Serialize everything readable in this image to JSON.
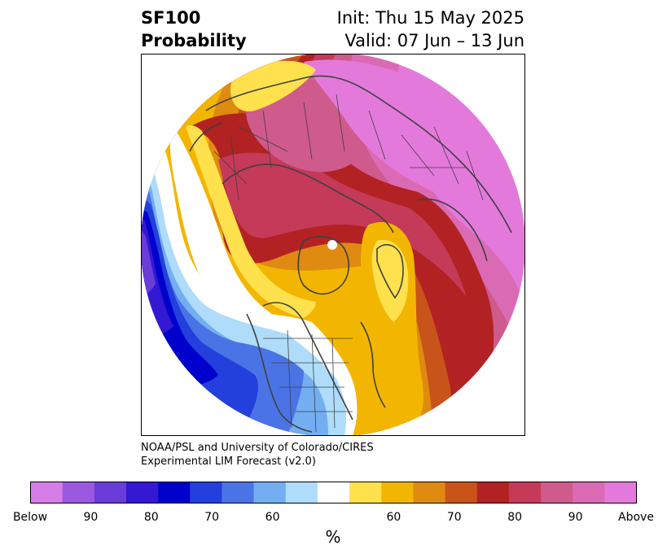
{
  "title": {
    "left_line1": "SF100",
    "left_line2": "Probability",
    "right_line1": "Init: Thu 15 May 2025",
    "right_line2": "Valid: 07 Jun – 13 Jun"
  },
  "credit": {
    "line1": "NOAA/PSL and University of Colorado/CIRES",
    "line2": "Experimental LIM Forecast (v2.0)"
  },
  "colorbar": {
    "unit": "%",
    "colors": [
      "#d77de8",
      "#9b59e0",
      "#6a3cd8",
      "#3418d2",
      "#0000cd",
      "#2340dc",
      "#4a74e6",
      "#74aef2",
      "#aedcfa",
      "#ffffff",
      "#ffe14d",
      "#f3b600",
      "#df8a10",
      "#c8541a",
      "#b22222",
      "#c43a58",
      "#cf5a8c",
      "#db6ab4",
      "#e479dc"
    ],
    "ticks": [
      "Below",
      "90",
      "80",
      "70",
      "60",
      "60",
      "70",
      "80",
      "90",
      "Above"
    ]
  },
  "map": {
    "description_icon": "polar-stereographic-map",
    "pole_marker": "white-dot"
  }
}
